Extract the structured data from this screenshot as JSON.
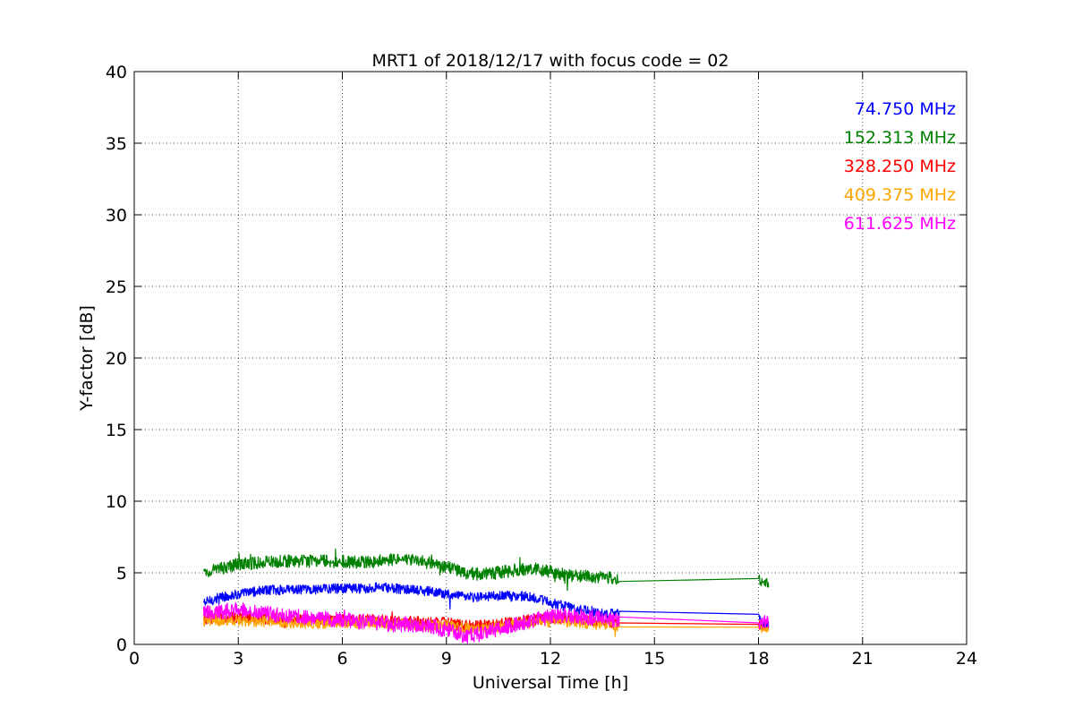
{
  "chart_data": {
    "type": "line",
    "title": "MRT1 of 2018/12/17 with focus code = 02",
    "xlabel": "Universal Time [h]",
    "ylabel": "Y-factor [dB]",
    "xlim": [
      0,
      24
    ],
    "ylim": [
      0,
      40
    ],
    "xticks": [
      0,
      3,
      6,
      9,
      12,
      15,
      18,
      21,
      24
    ],
    "yticks": [
      0,
      5,
      10,
      15,
      20,
      25,
      30,
      35,
      40
    ],
    "grid": true,
    "legend_position": "top-right",
    "series": [
      {
        "name": "74.750 MHz",
        "color": "#0000ff",
        "noise": 0.35,
        "x": [
          2.0,
          2.5,
          3.0,
          3.5,
          4.0,
          4.5,
          5.0,
          5.5,
          6.0,
          6.5,
          7.0,
          7.5,
          8.0,
          8.5,
          9.0,
          9.5,
          10.0,
          10.5,
          11.0,
          11.5,
          12.0,
          12.5,
          13.0,
          13.5,
          14.0,
          18.0,
          18.1,
          18.2,
          18.3
        ],
        "y": [
          2.9,
          3.3,
          3.5,
          3.7,
          3.8,
          3.8,
          3.8,
          3.9,
          3.9,
          3.9,
          4.0,
          3.9,
          3.8,
          3.7,
          3.5,
          3.3,
          3.3,
          3.4,
          3.4,
          3.3,
          2.9,
          2.6,
          2.4,
          2.2,
          2.1,
          2.1,
          1.5,
          1.4,
          1.5
        ]
      },
      {
        "name": "152.313 MHz",
        "color": "#008000",
        "noise": 0.45,
        "x": [
          2.0,
          2.5,
          3.0,
          3.5,
          4.0,
          4.5,
          5.0,
          5.5,
          6.0,
          6.5,
          7.0,
          7.5,
          8.0,
          8.5,
          9.0,
          9.5,
          10.0,
          10.5,
          11.0,
          11.5,
          12.0,
          12.5,
          13.0,
          13.5,
          14.0,
          18.0,
          18.1,
          18.2,
          18.3
        ],
        "y": [
          5.0,
          5.3,
          5.6,
          5.7,
          5.8,
          5.8,
          5.8,
          5.8,
          5.8,
          5.7,
          5.8,
          5.9,
          5.9,
          5.7,
          5.4,
          5.0,
          4.9,
          5.0,
          5.2,
          5.3,
          5.1,
          4.8,
          4.8,
          4.7,
          4.6,
          4.6,
          4.3,
          4.2,
          4.3
        ]
      },
      {
        "name": "328.250 MHz",
        "color": "#ff0000",
        "noise": 0.4,
        "x": [
          2.0,
          2.5,
          3.0,
          3.5,
          4.0,
          4.5,
          5.0,
          5.5,
          6.0,
          6.5,
          7.0,
          7.5,
          8.0,
          8.5,
          9.0,
          9.5,
          10.0,
          10.5,
          11.0,
          11.5,
          12.0,
          12.5,
          13.0,
          13.5,
          14.0,
          18.0,
          18.1,
          18.2,
          18.3
        ],
        "y": [
          1.8,
          1.9,
          1.9,
          1.8,
          1.8,
          1.7,
          1.7,
          1.7,
          1.7,
          1.7,
          1.7,
          1.6,
          1.6,
          1.5,
          1.5,
          1.3,
          1.3,
          1.4,
          1.6,
          1.7,
          1.8,
          1.8,
          1.7,
          1.6,
          1.5,
          1.4,
          1.3,
          1.3,
          1.4
        ]
      },
      {
        "name": "409.375 MHz",
        "color": "#ffa500",
        "noise": 0.4,
        "x": [
          2.0,
          2.5,
          3.0,
          3.5,
          4.0,
          4.5,
          5.0,
          5.5,
          6.0,
          6.5,
          7.0,
          7.5,
          8.0,
          8.5,
          9.0,
          9.5,
          10.0,
          10.5,
          11.0,
          11.5,
          12.0,
          12.5,
          13.0,
          13.5,
          14.0,
          18.0,
          18.1,
          18.2,
          18.3
        ],
        "y": [
          1.6,
          1.7,
          1.7,
          1.6,
          1.6,
          1.5,
          1.5,
          1.5,
          1.5,
          1.5,
          1.5,
          1.4,
          1.4,
          1.3,
          1.3,
          1.1,
          1.1,
          1.2,
          1.4,
          1.5,
          1.6,
          1.6,
          1.5,
          1.4,
          1.3,
          1.2,
          1.1,
          1.1,
          1.2
        ]
      },
      {
        "name": "611.625 MHz",
        "color": "#ff00ff",
        "noise": 0.55,
        "x": [
          2.0,
          2.5,
          3.0,
          3.5,
          4.0,
          4.5,
          5.0,
          5.5,
          6.0,
          6.5,
          7.0,
          7.5,
          8.0,
          8.5,
          9.0,
          9.5,
          10.0,
          10.5,
          11.0,
          11.5,
          12.0,
          12.5,
          13.0,
          13.5,
          14.0,
          18.0,
          18.1,
          18.2,
          18.3
        ],
        "y": [
          2.2,
          2.3,
          2.4,
          2.3,
          2.1,
          2.0,
          1.9,
          1.8,
          1.7,
          1.6,
          1.5,
          1.4,
          1.4,
          1.3,
          1.0,
          0.6,
          0.7,
          1.1,
          1.4,
          1.7,
          1.9,
          2.0,
          1.9,
          1.8,
          1.7,
          1.5,
          1.5,
          1.6,
          1.6
        ]
      }
    ]
  }
}
